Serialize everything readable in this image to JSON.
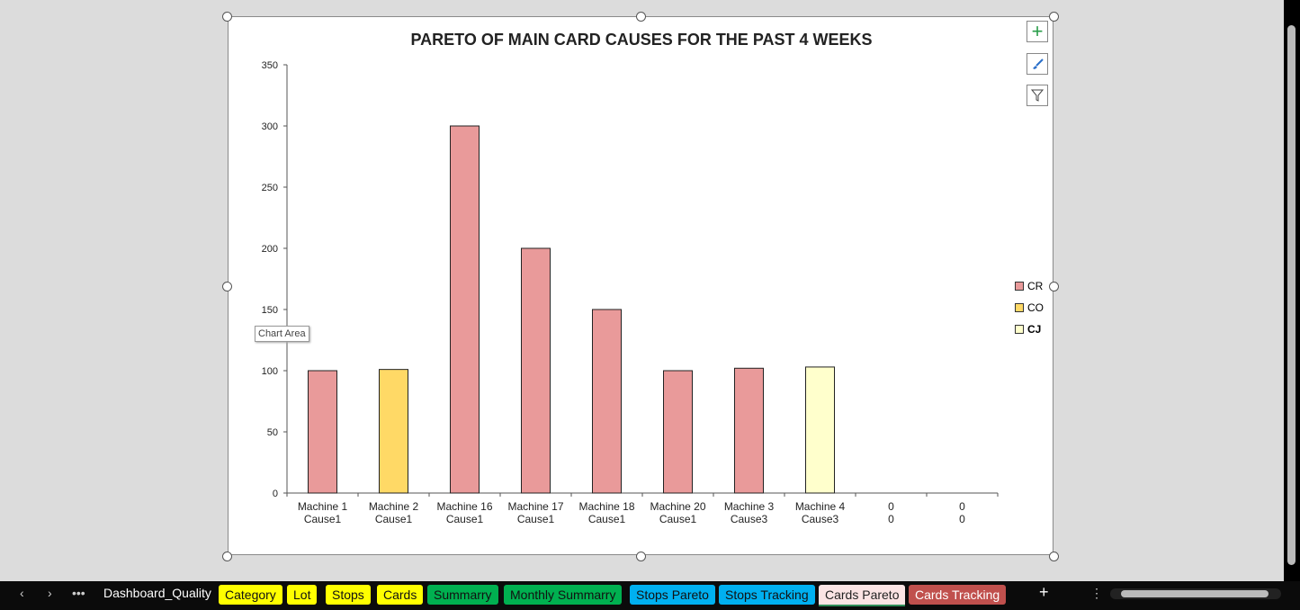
{
  "chart_data": {
    "type": "bar",
    "title": "PARETO OF MAIN CARD CAUSES FOR THE PAST 4 WEEKS",
    "categories": [
      [
        "Machine 1",
        "Cause1"
      ],
      [
        "Machine 2",
        "Cause1"
      ],
      [
        "Machine 16",
        "Cause1"
      ],
      [
        "Machine 17",
        "Cause1"
      ],
      [
        "Machine 18",
        "Cause1"
      ],
      [
        "Machine 20",
        "Cause1"
      ],
      [
        "Machine 3",
        "Cause3"
      ],
      [
        "Machine 4",
        "Cause3"
      ],
      [
        "0",
        "0"
      ],
      [
        "0",
        "0"
      ]
    ],
    "values": [
      100,
      101,
      300,
      200,
      150,
      100,
      102,
      103,
      0,
      0
    ],
    "series_of_bar": [
      "CR",
      "CO",
      "CR",
      "CR",
      "CR",
      "CR",
      "CR",
      "CJ",
      null,
      null
    ],
    "legend": [
      {
        "name": "CR",
        "color": "#e99a9a"
      },
      {
        "name": "CO",
        "color": "#ffd966"
      },
      {
        "name": "CJ",
        "color": "#ffffcc"
      }
    ],
    "ylim": [
      0,
      350
    ],
    "yticks": [
      0,
      50,
      100,
      150,
      200,
      250,
      300,
      350
    ],
    "grid": false,
    "legend_position": "right"
  },
  "tooltip": "Chart Area",
  "chart_buttons": [
    "chart-elements",
    "chart-styles",
    "chart-filters"
  ],
  "tabs": {
    "dashboard": "Dashboard_Quality",
    "items": [
      {
        "label": "Category",
        "color": "#ffff00",
        "text": "#111"
      },
      {
        "label": "Lot",
        "color": "#ffff00",
        "text": "#111"
      },
      {
        "label": "Stops",
        "color": "#ffff00",
        "text": "#111"
      },
      {
        "label": "Cards",
        "color": "#ffff00",
        "text": "#111"
      },
      {
        "label": "Summarry",
        "color": "#00b050",
        "text": "#111"
      },
      {
        "label": "Monthly Summarry",
        "color": "#00b050",
        "text": "#111"
      },
      {
        "label": "Stops Pareto",
        "color": "#00b0f0",
        "text": "#111"
      },
      {
        "label": "Stops Tracking",
        "color": "#00b0f0",
        "text": "#111"
      },
      {
        "label": "Cards Pareto",
        "color": "#fbe4e4",
        "text": "#222",
        "active": true
      },
      {
        "label": "Cards Tracking",
        "color": "#c0504d",
        "text": "#fff"
      }
    ]
  }
}
